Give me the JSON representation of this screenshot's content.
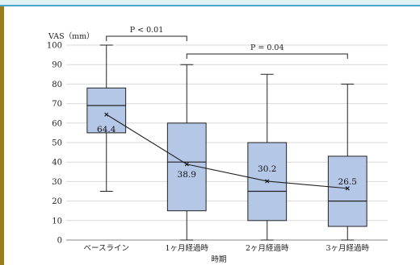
{
  "chart_data": {
    "type": "box",
    "ylabel": "VAS（mm）",
    "xlabel": "時期",
    "ylim": [
      0,
      100
    ],
    "yticks": [
      0,
      10,
      20,
      30,
      40,
      50,
      60,
      70,
      80,
      90,
      100
    ],
    "grid": "horizontal",
    "categories": [
      "ベースライン",
      "1ヶ月経過時",
      "2ヶ月経過時",
      "3ヶ月経過時"
    ],
    "boxes": [
      {
        "min": 25,
        "q1": 55,
        "median": 69,
        "q3": 78,
        "max": 100
      },
      {
        "min": 0,
        "q1": 15,
        "median": 40,
        "q3": 60,
        "max": 90
      },
      {
        "min": 0,
        "q1": 10,
        "median": 25,
        "q3": 50,
        "max": 85
      },
      {
        "min": 0,
        "q1": 7,
        "median": 20,
        "q3": 43,
        "max": 80
      }
    ],
    "means": [
      64.4,
      38.9,
      30.2,
      26.5
    ],
    "mean_labels": [
      "64.4",
      "38.9",
      "30.2",
      "26.5"
    ],
    "comparisons": [
      {
        "from": 0,
        "to": 1,
        "label": "P < 0.01"
      },
      {
        "from": 1,
        "to": 3,
        "label": "P = 0.04"
      }
    ],
    "colors": {
      "box_fill": "#b4c7e7",
      "box_stroke": "#222222",
      "grid": "#d9d9d9",
      "mean_line": "#222222"
    }
  }
}
